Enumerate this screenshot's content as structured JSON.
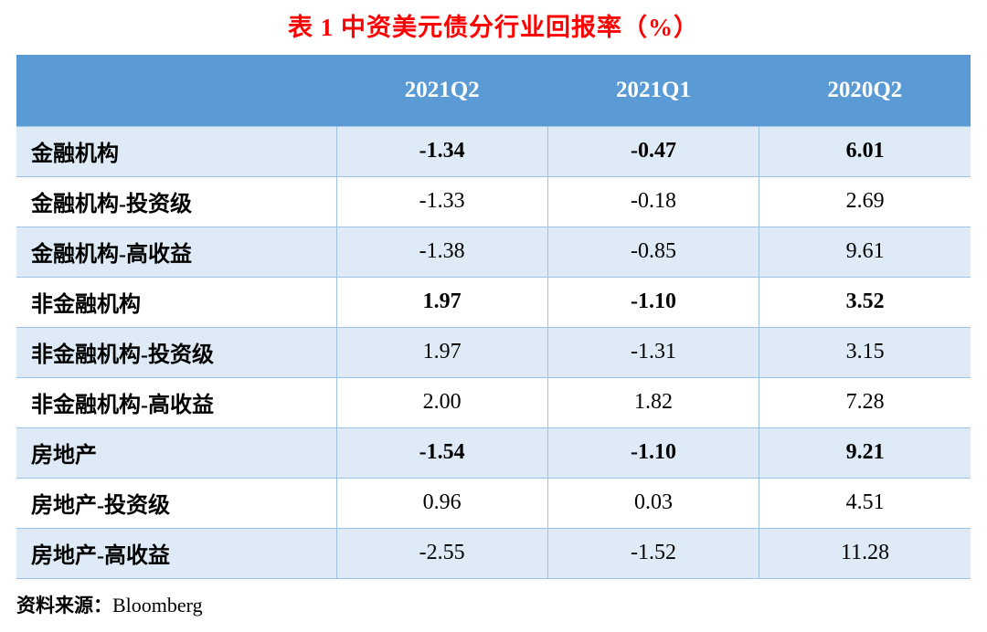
{
  "title": "表 1 中资美元债分行业回报率（%）",
  "table": {
    "columns": [
      "",
      "2021Q2",
      "2021Q1",
      "2020Q2"
    ],
    "rows": [
      {
        "label": "金融机构",
        "values": [
          "-1.34",
          "-0.47",
          "6.01"
        ],
        "emphasis": true
      },
      {
        "label": "金融机构-投资级",
        "values": [
          "-1.33",
          "-0.18",
          "2.69"
        ],
        "emphasis": false
      },
      {
        "label": "金融机构-高收益",
        "values": [
          "-1.38",
          "-0.85",
          "9.61"
        ],
        "emphasis": false
      },
      {
        "label": "非金融机构",
        "values": [
          "1.97",
          "-1.10",
          "3.52"
        ],
        "emphasis": true
      },
      {
        "label": "非金融机构-投资级",
        "values": [
          "1.97",
          "-1.31",
          "3.15"
        ],
        "emphasis": false
      },
      {
        "label": "非金融机构-高收益",
        "values": [
          "2.00",
          "1.82",
          "7.28"
        ],
        "emphasis": false
      },
      {
        "label": "房地产",
        "values": [
          "-1.54",
          "-1.10",
          "9.21"
        ],
        "emphasis": true
      },
      {
        "label": "房地产-投资级",
        "values": [
          "0.96",
          "0.03",
          "4.51"
        ],
        "emphasis": false
      },
      {
        "label": "房地产-高收益",
        "values": [
          "-2.55",
          "-1.52",
          "11.28"
        ],
        "emphasis": false
      }
    ]
  },
  "source": {
    "label": "资料来源：",
    "value": "Bloomberg"
  },
  "colors": {
    "title_red": "#fe0000",
    "header_blue": "#5b9bd5",
    "band_light_blue": "#deebf7",
    "grid_line_blue": "#9dc3e6"
  }
}
